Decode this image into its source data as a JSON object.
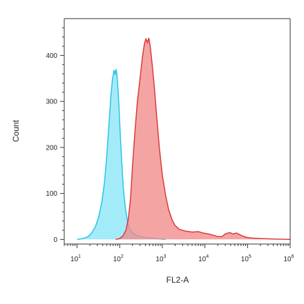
{
  "chart_data": {
    "type": "area",
    "xlabel": "FL2-A",
    "ylabel": "Count",
    "xscale": "log",
    "xlim": [
      5,
      1000000
    ],
    "ylim": [
      -10,
      480
    ],
    "grid": false,
    "legend": "none",
    "x_ticks": [
      {
        "value": 10,
        "base": "10",
        "exp": "1"
      },
      {
        "value": 100,
        "base": "10",
        "exp": "2"
      },
      {
        "value": 1000,
        "base": "10",
        "exp": "3"
      },
      {
        "value": 10000,
        "base": "10",
        "exp": "4"
      },
      {
        "value": 100000,
        "base": "10",
        "exp": "5"
      },
      {
        "value": 1000000,
        "base": "10",
        "exp": "6"
      }
    ],
    "y_ticks": [
      0,
      100,
      200,
      300,
      400
    ],
    "series": [
      {
        "color": "#29c4e6",
        "fill": "#8ae6f7",
        "points": [
          [
            10,
            0
          ],
          [
            14,
            2
          ],
          [
            18,
            6
          ],
          [
            22,
            14
          ],
          [
            27,
            28
          ],
          [
            32,
            48
          ],
          [
            38,
            80
          ],
          [
            44,
            125
          ],
          [
            50,
            185
          ],
          [
            56,
            250
          ],
          [
            62,
            310
          ],
          [
            68,
            350
          ],
          [
            74,
            368
          ],
          [
            78,
            358
          ],
          [
            82,
            370
          ],
          [
            86,
            360
          ],
          [
            90,
            335
          ],
          [
            96,
            290
          ],
          [
            103,
            230
          ],
          [
            112,
            165
          ],
          [
            122,
            110
          ],
          [
            135,
            70
          ],
          [
            150,
            42
          ],
          [
            170,
            24
          ],
          [
            200,
            15
          ],
          [
            250,
            9
          ],
          [
            320,
            6
          ],
          [
            420,
            4
          ],
          [
            550,
            3
          ],
          [
            700,
            2
          ],
          [
            900,
            1
          ],
          [
            1200,
            0
          ]
        ]
      },
      {
        "color": "#d93a3a",
        "fill": "#f28b8b",
        "points": [
          [
            80,
            0
          ],
          [
            100,
            2
          ],
          [
            120,
            8
          ],
          [
            140,
            20
          ],
          [
            160,
            45
          ],
          [
            180,
            90
          ],
          [
            200,
            160
          ],
          [
            230,
            240
          ],
          [
            260,
            300
          ],
          [
            300,
            350
          ],
          [
            340,
            395
          ],
          [
            380,
            425
          ],
          [
            410,
            436
          ],
          [
            450,
            428
          ],
          [
            480,
            438
          ],
          [
            520,
            420
          ],
          [
            580,
            380
          ],
          [
            650,
            330
          ],
          [
            750,
            260
          ],
          [
            850,
            200
          ],
          [
            1000,
            140
          ],
          [
            1200,
            95
          ],
          [
            1400,
            65
          ],
          [
            1700,
            42
          ],
          [
            2000,
            30
          ],
          [
            2500,
            22
          ],
          [
            3500,
            18
          ],
          [
            5000,
            16
          ],
          [
            7000,
            17
          ],
          [
            9000,
            14
          ],
          [
            12000,
            12
          ],
          [
            16000,
            9
          ],
          [
            20000,
            6
          ],
          [
            25000,
            6
          ],
          [
            30000,
            12
          ],
          [
            38000,
            15
          ],
          [
            45000,
            12
          ],
          [
            55000,
            14
          ],
          [
            70000,
            9
          ],
          [
            90000,
            5
          ],
          [
            120000,
            3
          ],
          [
            200000,
            2
          ],
          [
            400000,
            1
          ],
          [
            1000000,
            0
          ]
        ]
      }
    ]
  }
}
